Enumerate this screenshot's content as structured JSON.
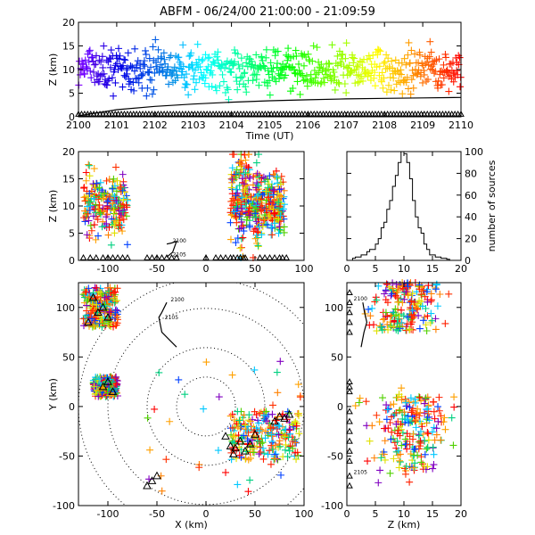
{
  "chart_data": {
    "title": "ABFM - 06/24/00 21:00:00 - 21:09:59",
    "panels": [
      {
        "id": "time_height",
        "type": "scatter",
        "xlabel": "Time (UT)",
        "ylabel": "Z (km)",
        "xlim": [
          2100,
          2110
        ],
        "ylim": [
          0,
          20
        ],
        "xticks": [
          "2100",
          "2101",
          "2102",
          "2103",
          "2104",
          "2105",
          "2106",
          "2107",
          "2108",
          "2109",
          "2110"
        ],
        "yticks": [
          "0",
          "5",
          "10",
          "15",
          "20"
        ],
        "color_by": "time",
        "source_height_band_km": [
          4,
          16
        ],
        "source_height_center_km": 10,
        "altitude_line": [
          [
            2100,
            0.2
          ],
          [
            2101,
            1.5
          ],
          [
            2102,
            2.2
          ],
          [
            2103,
            2.7
          ],
          [
            2104,
            3.1
          ],
          [
            2105,
            3.4
          ],
          [
            2106,
            3.6
          ],
          [
            2107,
            3.8
          ],
          [
            2108,
            3.9
          ],
          [
            2109,
            4.0
          ],
          [
            2110,
            4.1
          ]
        ],
        "station_markers_at_z": 0
      },
      {
        "id": "x_z",
        "type": "scatter",
        "xlabel": "",
        "ylabel": "Z (km)",
        "xlim": [
          -130,
          100
        ],
        "ylim": [
          0,
          20
        ],
        "xticks": [
          "-100",
          "-50",
          "0",
          "50",
          "100"
        ],
        "yticks": [
          "0",
          "5",
          "10",
          "15",
          "20"
        ],
        "clusters": [
          {
            "x_range": [
              -125,
              -80
            ],
            "z_range": [
              4,
              16
            ]
          },
          {
            "x_range": [
              25,
              55
            ],
            "z_range": [
              3,
              20
            ]
          },
          {
            "x_range": [
              50,
              80
            ],
            "z_range": [
              5,
              15
            ]
          }
        ],
        "track_labels": [
          "2100",
          "2105"
        ],
        "track": [
          [
            -40,
            3
          ],
          [
            -35,
            3.2
          ],
          [
            -30,
            3.5
          ],
          [
            -34,
            1.5
          ],
          [
            -40,
            0.6
          ]
        ],
        "stations_x": [
          -125,
          -118,
          -112,
          -105,
          -100,
          -95,
          -90,
          -85,
          -80,
          -60,
          -55,
          -50,
          -45,
          -40,
          -35,
          -30,
          0,
          10,
          15,
          20,
          25,
          28,
          32,
          35,
          38,
          40,
          55,
          60,
          65,
          70,
          75,
          78,
          82
        ]
      },
      {
        "id": "height_histogram",
        "type": "bar",
        "xlabel": "",
        "ylabel": "number of sources",
        "xlim": [
          0,
          20
        ],
        "ylim": [
          0,
          100
        ],
        "xticks": [
          "0",
          "5",
          "10",
          "15",
          "20"
        ],
        "yticks": [
          "0",
          "20",
          "40",
          "60",
          "80",
          "100"
        ],
        "bin_width_km": 0.5,
        "bin_starts_km": [
          1.0,
          1.5,
          2.0,
          2.5,
          3.0,
          3.5,
          4.0,
          4.5,
          5.0,
          5.5,
          6.0,
          6.5,
          7.0,
          7.5,
          8.0,
          8.5,
          9.0,
          9.5,
          10.0,
          10.5,
          11.0,
          11.5,
          12.0,
          12.5,
          13.0,
          13.5,
          14.0,
          14.5,
          15.0,
          15.5,
          16.0,
          16.5,
          17.0,
          17.5,
          18.0
        ],
        "values": [
          2,
          3,
          3,
          5,
          5,
          8,
          10,
          10,
          15,
          20,
          30,
          35,
          47,
          55,
          68,
          78,
          90,
          100,
          98,
          90,
          75,
          55,
          40,
          30,
          25,
          15,
          10,
          5,
          5,
          3,
          3,
          2,
          2,
          1,
          0
        ]
      },
      {
        "id": "plan_view",
        "type": "scatter",
        "xlabel": "X (km)",
        "ylabel": "Y (km)",
        "xlim": [
          -130,
          100
        ],
        "ylim": [
          -100,
          125
        ],
        "xticks": [
          "-100",
          "-50",
          "0",
          "50",
          "100"
        ],
        "yticks": [
          "-100",
          "-50",
          "0",
          "50",
          "100"
        ],
        "range_rings_km": [
          30,
          60,
          100,
          130
        ],
        "clusters": [
          {
            "x_range": [
              -125,
              -90
            ],
            "y_range": [
              80,
              120
            ]
          },
          {
            "x_range": [
              -115,
              -90
            ],
            "y_range": [
              10,
              30
            ]
          },
          {
            "x_range": [
              25,
              95
            ],
            "y_range": [
              -55,
              -5
            ]
          }
        ],
        "track_labels": [
          "2100",
          "2105"
        ],
        "track": [
          [
            -40,
            105
          ],
          [
            -45,
            95
          ],
          [
            -48,
            90
          ],
          [
            -45,
            75
          ],
          [
            -30,
            60
          ]
        ],
        "stations": [
          [
            -110,
            95
          ],
          [
            -105,
            100
          ],
          [
            -100,
            90
          ],
          [
            -115,
            110
          ],
          [
            -120,
            85
          ],
          [
            -100,
            25
          ],
          [
            -105,
            20
          ],
          [
            -95,
            15
          ],
          [
            -55,
            -75
          ],
          [
            -50,
            -70
          ],
          [
            -60,
            -80
          ],
          [
            20,
            -30
          ],
          [
            25,
            -40
          ],
          [
            30,
            -42
          ],
          [
            35,
            -35
          ],
          [
            40,
            -45
          ],
          [
            28,
            -48
          ],
          [
            45,
            -38
          ],
          [
            50,
            -28
          ],
          [
            75,
            -10
          ],
          [
            80,
            -12
          ],
          [
            70,
            -15
          ],
          [
            85,
            -8
          ]
        ]
      },
      {
        "id": "z_y",
        "type": "scatter",
        "xlabel": "Z (km)",
        "ylabel": "",
        "xlim": [
          0,
          20
        ],
        "ylim": [
          -100,
          125
        ],
        "xticks": [
          "0",
          "5",
          "10",
          "15",
          "20"
        ],
        "yticks": [
          "-100",
          "-50",
          "0",
          "50",
          "100"
        ],
        "clusters": [
          {
            "z_range": [
              5,
              16
            ],
            "y_range": [
              75,
              125
            ]
          },
          {
            "z_range": [
              4,
              18
            ],
            "y_range": [
              -65,
              10
            ]
          }
        ],
        "track_labels": [
          "2100",
          "2105"
        ],
        "track": [
          [
            2.8,
            105
          ],
          [
            3.1,
            95
          ],
          [
            3.5,
            85
          ],
          [
            3.0,
            75
          ],
          [
            2.5,
            60
          ]
        ],
        "stations": [
          [
            0,
            115
          ],
          [
            0,
            105
          ],
          [
            0,
            95
          ],
          [
            0,
            85
          ],
          [
            0,
            75
          ],
          [
            0,
            25
          ],
          [
            0,
            20
          ],
          [
            0,
            15
          ],
          [
            0,
            -5
          ],
          [
            0,
            -15
          ],
          [
            0,
            -25
          ],
          [
            0,
            -35
          ],
          [
            0,
            -45
          ],
          [
            0,
            -55
          ],
          [
            0,
            -70
          ],
          [
            0,
            -80
          ]
        ]
      }
    ]
  }
}
